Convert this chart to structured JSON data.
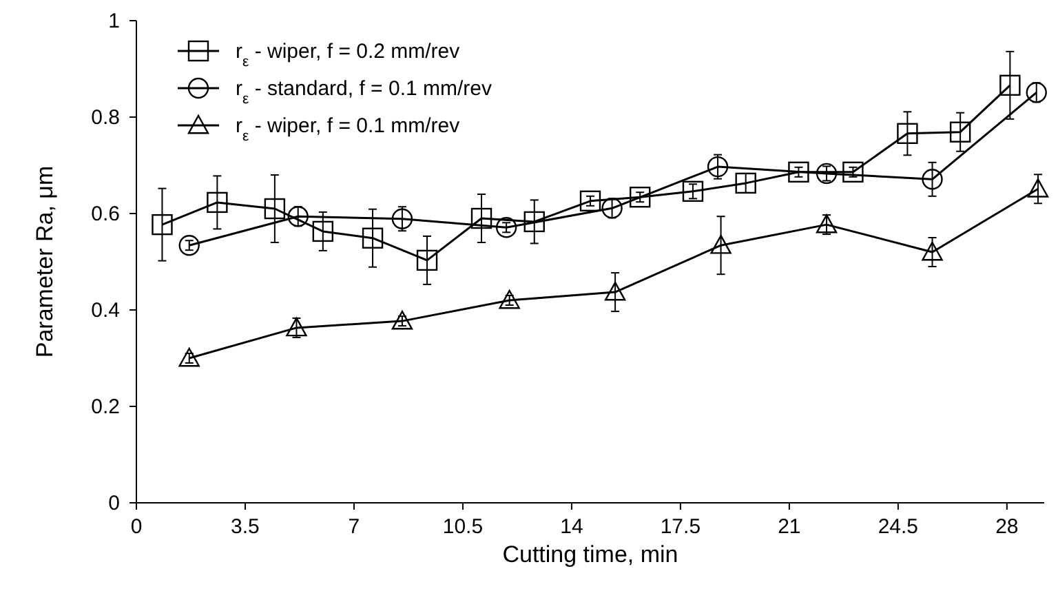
{
  "chart_data": {
    "type": "line",
    "xlabel": "Cutting time, min",
    "ylabel": "Parameter Ra, μm",
    "xlim": [
      0,
      29.2
    ],
    "xticks": [
      0,
      3.5,
      7,
      10.5,
      14,
      17.5,
      21,
      24.5,
      28
    ],
    "ylim": [
      0,
      1
    ],
    "yticks": [
      0,
      0.2,
      0.4,
      0.6,
      0.8,
      1
    ],
    "legend": "top left",
    "grid": false,
    "line_style": "solid",
    "series": [
      {
        "name": "r$_{ε}$ - wiper, f = 0.2 mm/rev",
        "color": "#000000",
        "marker": "square",
        "x": [
          0.83,
          2.6,
          4.45,
          6.0,
          7.6,
          9.35,
          11.1,
          12.8,
          14.6,
          16.2,
          17.9,
          19.6,
          21.3,
          23.05,
          24.8,
          26.5,
          28.1
        ],
        "values": [
          0.577,
          0.623,
          0.61,
          0.563,
          0.549,
          0.503,
          0.59,
          0.583,
          0.626,
          0.634,
          0.646,
          0.663,
          0.686,
          0.686,
          0.766,
          0.769,
          0.866
        ],
        "errors": [
          0.075,
          0.055,
          0.07,
          0.04,
          0.06,
          0.05,
          0.05,
          0.045,
          0.01,
          0.01,
          0.015,
          0.02,
          0.01,
          0.01,
          0.045,
          0.04,
          0.07
        ]
      },
      {
        "name": "r$_{ε}$ - standard, f = 0.1 mm/rev",
        "color": "#000000",
        "marker": "circle",
        "x": [
          1.7,
          5.2,
          8.55,
          11.9,
          15.3,
          18.7,
          22.2,
          25.6,
          28.95
        ],
        "values": [
          0.534,
          0.594,
          0.589,
          0.571,
          0.611,
          0.697,
          0.683,
          0.671,
          0.851
        ],
        "errors": [
          0.01,
          0.02,
          0.025,
          0.01,
          0.02,
          0.025,
          0.015,
          0.035,
          0.02
        ]
      },
      {
        "name": "r$_{ε}$ - wiper, f = 0.1 mm/rev",
        "color": "#000000",
        "marker": "triangle",
        "x": [
          1.7,
          5.15,
          8.55,
          12.0,
          15.4,
          18.8,
          22.2,
          25.6,
          29.0
        ],
        "values": [
          0.3,
          0.363,
          0.377,
          0.42,
          0.437,
          0.534,
          0.577,
          0.52,
          0.651
        ],
        "errors": [
          0.01,
          0.02,
          0.01,
          0.01,
          0.04,
          0.06,
          0.02,
          0.03,
          0.03
        ]
      }
    ]
  }
}
